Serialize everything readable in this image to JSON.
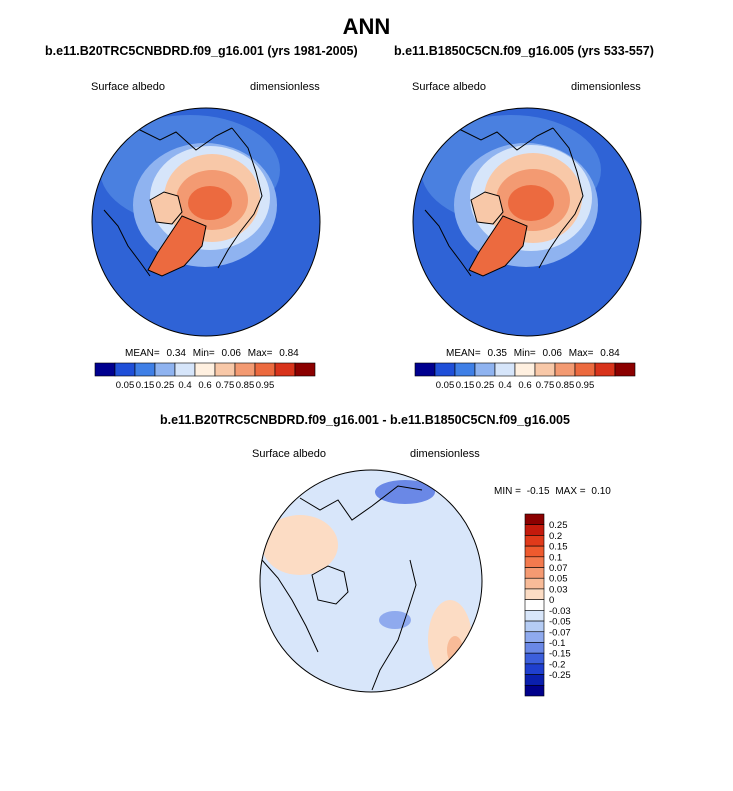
{
  "title": "ANN",
  "chart_data": [
    {
      "type": "heatmap",
      "title": "b.e11.B20TRC5CNBDRD.f09_g16.001 (yrs 1981-2005)",
      "variable": "Surface albedo",
      "units": "dimensionless",
      "stats": {
        "mean_label": "MEAN=",
        "mean": "0.34",
        "min_label": "Min=",
        "min": "0.06",
        "max_label": "Max=",
        "max": "0.84"
      },
      "colorbar_levels": [
        "0.05",
        "0.15",
        "0.25",
        "0.4",
        "0.6",
        "0.75",
        "0.85",
        "0.95"
      ],
      "colorbar_colors": [
        "#00008f",
        "#1f4fd8",
        "#3f7fe6",
        "#8fb3f0",
        "#d6e5fa",
        "#fff0e0",
        "#f8c8a8",
        "#f39a72",
        "#ec6a3f",
        "#d8331b",
        "#8b0000"
      ]
    },
    {
      "type": "heatmap",
      "title": "b.e11.B1850C5CN.f09_g16.005 (yrs 533-557)",
      "variable": "Surface albedo",
      "units": "dimensionless",
      "stats": {
        "mean_label": "MEAN=",
        "mean": "0.35",
        "min_label": "Min=",
        "min": "0.06",
        "max_label": "Max=",
        "max": "0.84"
      },
      "colorbar_levels": [
        "0.05",
        "0.15",
        "0.25",
        "0.4",
        "0.6",
        "0.75",
        "0.85",
        "0.95"
      ],
      "colorbar_colors": [
        "#00008f",
        "#1f4fd8",
        "#3f7fe6",
        "#8fb3f0",
        "#d6e5fa",
        "#fff0e0",
        "#f8c8a8",
        "#f39a72",
        "#ec6a3f",
        "#d8331b",
        "#8b0000"
      ]
    },
    {
      "type": "heatmap",
      "title": "b.e11.B20TRC5CNBDRD.f09_g16.001 - b.e11.B1850C5CN.f09_g16.005",
      "variable": "Surface albedo",
      "units": "dimensionless",
      "stats": {
        "min_label": "MIN =",
        "min": "-0.15",
        "max_label": "MAX =",
        "max": "0.10"
      },
      "colorbar_levels": [
        "0.25",
        "0.2",
        "0.15",
        "0.1",
        "0.07",
        "0.05",
        "0.03",
        "0",
        "-0.03",
        "-0.05",
        "-0.07",
        "-0.1",
        "-0.15",
        "-0.2",
        "-0.25"
      ],
      "colorbar_colors": [
        "#8b0000",
        "#c41a0c",
        "#e03a1a",
        "#ee5a2e",
        "#f37a4e",
        "#f59a72",
        "#f8bb98",
        "#fcdcc4",
        "#ffffff",
        "#d8e6fa",
        "#b5ccf4",
        "#8faaee",
        "#6a88e6",
        "#3c5fdc",
        "#1f3fcf",
        "#0a1fae",
        "#00008b"
      ]
    }
  ]
}
